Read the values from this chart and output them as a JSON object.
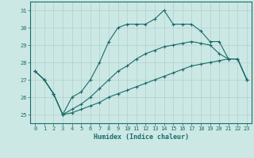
{
  "xlabel": "Humidex (Indice chaleur)",
  "ylabel": "",
  "background_color": "#cce8e4",
  "grid_color": "#aed0cc",
  "line_color": "#1a6b6b",
  "x": [
    0,
    1,
    2,
    3,
    4,
    5,
    6,
    7,
    8,
    9,
    10,
    11,
    12,
    13,
    14,
    15,
    16,
    17,
    18,
    19,
    20,
    21,
    22,
    23
  ],
  "line1": [
    27.5,
    27.0,
    26.2,
    25.0,
    25.1,
    25.3,
    25.5,
    25.7,
    26.0,
    26.2,
    26.4,
    26.6,
    26.8,
    27.0,
    27.2,
    27.4,
    27.6,
    27.8,
    27.9,
    28.0,
    28.1,
    28.2,
    28.2,
    27.0
  ],
  "line2": [
    27.5,
    27.0,
    26.2,
    25.0,
    25.3,
    25.6,
    26.0,
    26.5,
    27.0,
    27.5,
    27.8,
    28.2,
    28.5,
    28.7,
    28.9,
    29.0,
    29.1,
    29.2,
    29.1,
    29.0,
    28.5,
    28.2,
    28.2,
    27.0
  ],
  "line3": [
    27.5,
    27.0,
    26.2,
    25.0,
    26.0,
    26.3,
    27.0,
    28.0,
    29.2,
    30.0,
    30.2,
    30.2,
    30.2,
    30.5,
    31.0,
    30.2,
    30.2,
    30.2,
    29.8,
    29.2,
    29.2,
    28.2,
    28.2,
    27.0
  ],
  "xlim": [
    -0.5,
    23.5
  ],
  "ylim": [
    24.5,
    31.5
  ],
  "yticks": [
    25,
    26,
    27,
    28,
    29,
    30,
    31
  ],
  "xticks": [
    0,
    1,
    2,
    3,
    4,
    5,
    6,
    7,
    8,
    9,
    10,
    11,
    12,
    13,
    14,
    15,
    16,
    17,
    18,
    19,
    20,
    21,
    22,
    23
  ],
  "xlabel_fontsize": 6,
  "tick_fontsize": 5,
  "line_width": 0.8,
  "marker_size": 3
}
